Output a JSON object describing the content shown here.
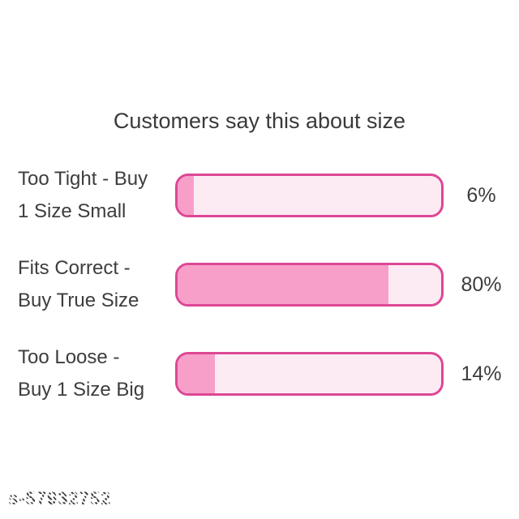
{
  "title": "Customers say this about size",
  "watermark": "s-57932752",
  "colors": {
    "title": "#3a3a3a",
    "text": "#3d3d3d",
    "barBorder": "#dd4795",
    "barFill": "#f79fc8",
    "barTrack": "#fdebf4"
  },
  "chart_data": {
    "type": "bar",
    "orientation": "horizontal",
    "title": "Customers say this about size",
    "unit": "%",
    "xlim": [
      0,
      100
    ],
    "grid": false,
    "legend": false,
    "categories": [
      "Too Tight - Buy 1 Size Small",
      "Fits Correct - Buy True Size",
      "Too Loose - Buy 1 Size Big"
    ],
    "values": [
      6,
      80,
      14
    ],
    "rows": [
      {
        "label_lines": [
          "Too Tight - Buy",
          "1 Size Small"
        ],
        "value": 6,
        "value_label": "6%"
      },
      {
        "label_lines": [
          "Fits Correct -",
          "Buy True Size"
        ],
        "value": 80,
        "value_label": "80%"
      },
      {
        "label_lines": [
          "Too Loose -",
          "Buy 1 Size Big"
        ],
        "value": 14,
        "value_label": "14%"
      }
    ]
  }
}
